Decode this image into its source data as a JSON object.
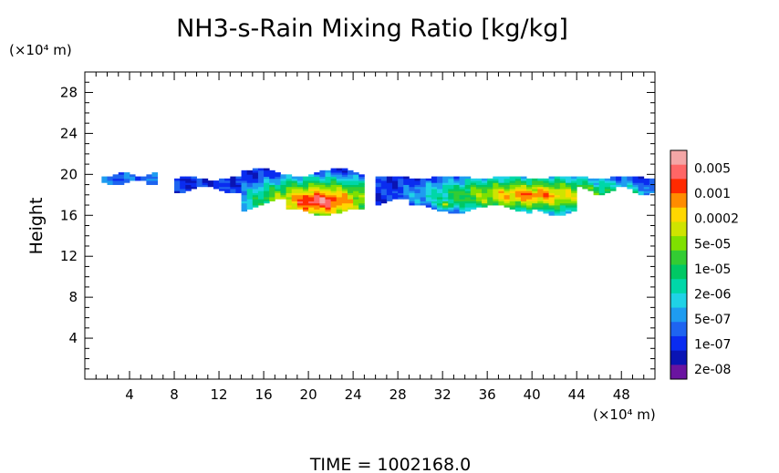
{
  "chart_data": {
    "type": "heatmap",
    "title": "NH3-s-Rain Mixing Ratio [kg/kg]",
    "xlabel": "",
    "ylabel": "Height",
    "x_unit_label": "(×10⁴ m)",
    "y_unit_label": "(×10⁴ m)",
    "time_label": "TIME  =  1002168.0",
    "xlim": [
      0,
      51
    ],
    "ylim": [
      0,
      30
    ],
    "x_ticks": [
      4,
      8,
      12,
      16,
      20,
      24,
      28,
      32,
      36,
      40,
      44,
      48
    ],
    "y_ticks": [
      4,
      8,
      12,
      16,
      20,
      24,
      28
    ],
    "grid": false,
    "colorbar": {
      "position": "right",
      "labels": [
        "0.005",
        "0.001",
        "0.0002",
        "5e-05",
        "1e-05",
        "2e-06",
        "5e-07",
        "1e-07",
        "2e-08"
      ],
      "colors_top_to_bottom": [
        "#f4a6a6",
        "#ff6666",
        "#ff2a00",
        "#ff8c00",
        "#ffd700",
        "#cfe400",
        "#7fe000",
        "#33cc33",
        "#00c864",
        "#00d7a8",
        "#1fd2e6",
        "#1e9cf0",
        "#1e64f0",
        "#0a2cf0",
        "#0a14b4",
        "#6a14a0"
      ]
    },
    "regions": [
      {
        "name": "left-fragment",
        "x": [
          1.5,
          6.5
        ],
        "y": [
          19.1,
          20.2
        ],
        "max_level": 3
      },
      {
        "name": "west-cloud",
        "x": [
          8,
          25
        ],
        "y": [
          15.8,
          20.7
        ],
        "peak_x": 21,
        "peak_y": 17.4,
        "max_level": 13
      },
      {
        "name": "east-cloud",
        "x": [
          25.5,
          51
        ],
        "y": [
          16,
          19.9
        ],
        "peak_x": 40,
        "peak_y": 18,
        "max_level": 11
      },
      {
        "name": "east-small-cell",
        "x": [
          31,
          34
        ],
        "y": [
          16.6,
          17.8
        ],
        "peak_x": 32.4,
        "peak_y": 17.1,
        "max_level": 8
      }
    ]
  }
}
